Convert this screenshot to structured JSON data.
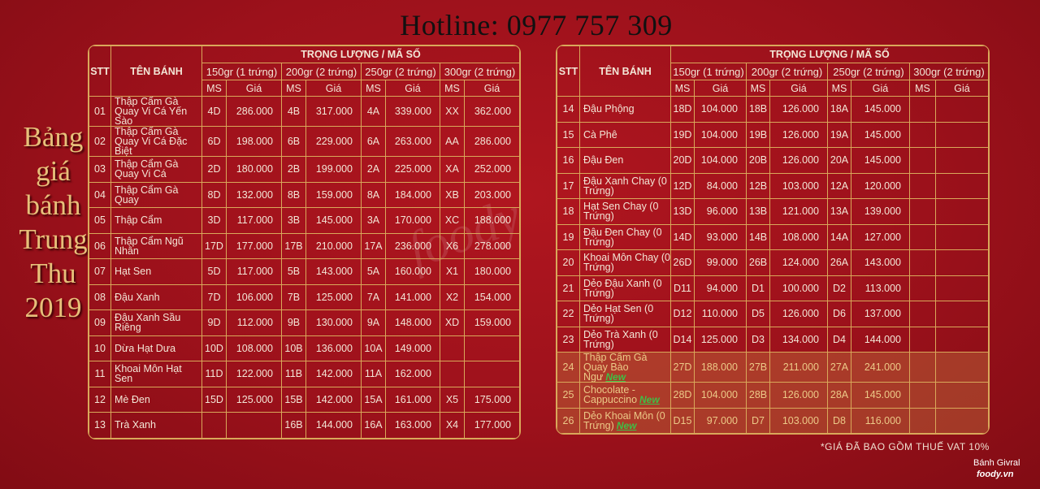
{
  "hotline": "Hotline: 0977 757 309",
  "side_title": [
    "Bảng",
    "giá",
    "bánh",
    "Trung",
    "Thu",
    "2019"
  ],
  "watermark": "foody",
  "headers": {
    "stt": "STT",
    "name": "TÊN BÁNH",
    "group": "TRỌNG LƯỢNG / MÃ SỐ",
    "weights": [
      "150gr (1 trứng)",
      "200gr (2 trứng)",
      "250gr (2 trứng)",
      "300gr (2 trứng)"
    ],
    "ms": "MS",
    "price": "Giá"
  },
  "new_label": "New",
  "colors": {
    "background": "#9c111b",
    "grid": "#d9a85a",
    "new_badge": "#3ec046",
    "highlight_text": "#ecc987"
  },
  "left_table": [
    {
      "stt": "01",
      "name": "Thập Cẩm Gà Quay Vi Cá Yến Sào",
      "cells": [
        "4D",
        "286.000",
        "4B",
        "317.000",
        "4A",
        "339.000",
        "XX",
        "362.000"
      ]
    },
    {
      "stt": "02",
      "name": "Thập Cẩm Gà Quay Vi Cá Đặc Biệt",
      "cells": [
        "6D",
        "198.000",
        "6B",
        "229.000",
        "6A",
        "263.000",
        "AA",
        "286.000"
      ]
    },
    {
      "stt": "03",
      "name": "Thập Cẩm Gà Quay Vi Cá",
      "cells": [
        "2D",
        "180.000",
        "2B",
        "199.000",
        "2A",
        "225.000",
        "XA",
        "252.000"
      ]
    },
    {
      "stt": "04",
      "name": "Thập Cẩm Gà Quay",
      "cells": [
        "8D",
        "132.000",
        "8B",
        "159.000",
        "8A",
        "184.000",
        "XB",
        "203.000"
      ]
    },
    {
      "stt": "05",
      "name": "Thập Cẩm",
      "cells": [
        "3D",
        "117.000",
        "3B",
        "145.000",
        "3A",
        "170.000",
        "XC",
        "188.000"
      ]
    },
    {
      "stt": "06",
      "name": "Thập Cẩm Ngũ Nhân",
      "cells": [
        "17D",
        "177.000",
        "17B",
        "210.000",
        "17A",
        "236.000",
        "X6",
        "278.000"
      ]
    },
    {
      "stt": "07",
      "name": "Hạt Sen",
      "cells": [
        "5D",
        "117.000",
        "5B",
        "143.000",
        "5A",
        "160.000",
        "X1",
        "180.000"
      ]
    },
    {
      "stt": "08",
      "name": "Đậu Xanh",
      "cells": [
        "7D",
        "106.000",
        "7B",
        "125.000",
        "7A",
        "141.000",
        "X2",
        "154.000"
      ]
    },
    {
      "stt": "09",
      "name": "Đậu Xanh Sầu Riêng",
      "cells": [
        "9D",
        "112.000",
        "9B",
        "130.000",
        "9A",
        "148.000",
        "XD",
        "159.000"
      ]
    },
    {
      "stt": "10",
      "name": "Dừa Hạt Dưa",
      "cells": [
        "10D",
        "108.000",
        "10B",
        "136.000",
        "10A",
        "149.000",
        "",
        ""
      ]
    },
    {
      "stt": "11",
      "name": "Khoai Môn Hạt Sen",
      "cells": [
        "11D",
        "122.000",
        "11B",
        "142.000",
        "11A",
        "162.000",
        "",
        ""
      ]
    },
    {
      "stt": "12",
      "name": "Mè Đen",
      "cells": [
        "15D",
        "125.000",
        "15B",
        "142.000",
        "15A",
        "161.000",
        "X5",
        "175.000"
      ]
    },
    {
      "stt": "13",
      "name": "Trà Xanh",
      "cells": [
        "",
        "",
        "16B",
        "144.000",
        "16A",
        "163.000",
        "X4",
        "177.000"
      ]
    }
  ],
  "right_table": [
    {
      "stt": "14",
      "name": "Đậu Phộng",
      "cells": [
        "18D",
        "104.000",
        "18B",
        "126.000",
        "18A",
        "145.000",
        "",
        ""
      ]
    },
    {
      "stt": "15",
      "name": "Cà Phê",
      "cells": [
        "19D",
        "104.000",
        "19B",
        "126.000",
        "19A",
        "145.000",
        "",
        ""
      ]
    },
    {
      "stt": "16",
      "name": "Đậu Đen",
      "cells": [
        "20D",
        "104.000",
        "20B",
        "126.000",
        "20A",
        "145.000",
        "",
        ""
      ]
    },
    {
      "stt": "17",
      "name": "Đậu Xanh Chay (0 Trứng)",
      "cells": [
        "12D",
        "84.000",
        "12B",
        "103.000",
        "12A",
        "120.000",
        "",
        ""
      ]
    },
    {
      "stt": "18",
      "name": "Hạt Sen Chay (0 Trứng)",
      "cells": [
        "13D",
        "96.000",
        "13B",
        "121.000",
        "13A",
        "139.000",
        "",
        ""
      ]
    },
    {
      "stt": "19",
      "name": "Đậu Đen Chay (0 Trứng)",
      "cells": [
        "14D",
        "93.000",
        "14B",
        "108.000",
        "14A",
        "127.000",
        "",
        ""
      ]
    },
    {
      "stt": "20",
      "name": "Khoai Môn Chay (0 Trứng)",
      "cells": [
        "26D",
        "99.000",
        "26B",
        "124.000",
        "26A",
        "143.000",
        "",
        ""
      ]
    },
    {
      "stt": "21",
      "name": "Dẻo Đậu Xanh (0 Trứng)",
      "cells": [
        "D11",
        "94.000",
        "D1",
        "100.000",
        "D2",
        "113.000",
        "",
        ""
      ]
    },
    {
      "stt": "22",
      "name": "Dẻo Hạt Sen (0 Trứng)",
      "cells": [
        "D12",
        "110.000",
        "D5",
        "126.000",
        "D6",
        "137.000",
        "",
        ""
      ]
    },
    {
      "stt": "23",
      "name": "Dẻo Trà Xanh (0 Trứng)",
      "cells": [
        "D14",
        "125.000",
        "D3",
        "134.000",
        "D4",
        "144.000",
        "",
        ""
      ]
    },
    {
      "stt": "24",
      "name": "Thập Cẩm Gà Quay Bào Ngư",
      "is_new": true,
      "cells": [
        "27D",
        "188.000",
        "27B",
        "211.000",
        "27A",
        "241.000",
        "",
        ""
      ]
    },
    {
      "stt": "25",
      "name": "Chocolate - Cappuccino",
      "is_new": true,
      "cells": [
        "28D",
        "104.000",
        "28B",
        "126.000",
        "28A",
        "145.000",
        "",
        ""
      ]
    },
    {
      "stt": "26",
      "name": "Dẻo Khoai Môn (0 Trứng)",
      "is_new": true,
      "cells": [
        "D15",
        "97.000",
        "D7",
        "103.000",
        "D8",
        "116.000",
        "",
        ""
      ]
    }
  ],
  "footnote": "*GIÁ ĐÃ BAO GỒM THUẾ VAT 10%",
  "brand": "Bánh Givral",
  "brand_logo": "foody.vn"
}
